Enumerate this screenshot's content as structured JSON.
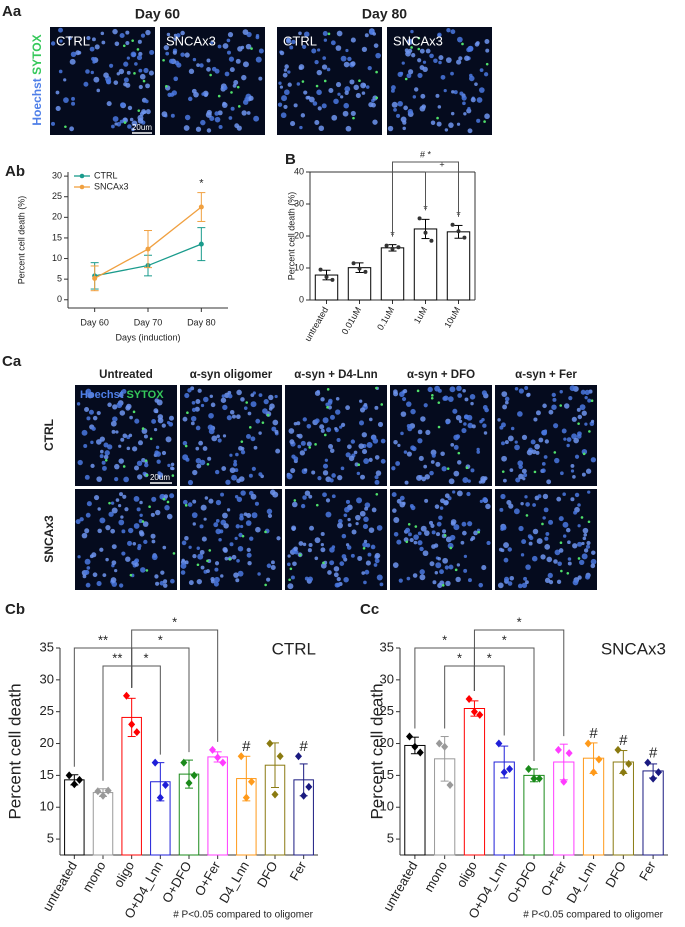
{
  "image_panels": {
    "Aa": {
      "label": "Aa",
      "headers": [
        "Day 60",
        "Day 80"
      ],
      "stain": [
        "Hoechst",
        "SYTOX"
      ],
      "tiles": [
        "CTRL",
        "SNCAx3",
        "CTRL",
        "SNCAx3"
      ],
      "scale": "20um"
    },
    "Ca": {
      "label": "Ca",
      "columns": [
        "Untreated",
        "α-syn oligomer",
        "α-syn + D4-Lnn",
        "α-syn + DFO",
        "α-syn + Fer"
      ],
      "rows": [
        "CTRL",
        "SNCAx3"
      ],
      "stain": [
        "Hoechst",
        "SYTOX"
      ],
      "scale": "20um"
    }
  },
  "chart_data": [
    {
      "type": "line",
      "panel": "Ab",
      "xlabel": "Days (induction)",
      "ylabel": "Percent cell death (%)",
      "categories": [
        "Day 60",
        "Day 70",
        "Day 80"
      ],
      "ylim": [
        -2,
        31
      ],
      "yticks": [
        0,
        5,
        10,
        15,
        20,
        25,
        30
      ],
      "legend": "upper left",
      "series": [
        {
          "name": "CTRL",
          "color": "#1a9b8c",
          "values": [
            5.8,
            8.3,
            13.5
          ],
          "errors": [
            3.2,
            2.5,
            4.0
          ]
        },
        {
          "name": "SNCAx3",
          "color": "#f0a040",
          "values": [
            5.2,
            12.3,
            22.5
          ],
          "errors": [
            3.0,
            4.5,
            3.5
          ]
        }
      ],
      "annotations": [
        {
          "at": 2,
          "text": "*"
        }
      ]
    },
    {
      "type": "bar",
      "panel": "B",
      "ylabel": "Percent cell death (%)",
      "categories": [
        "untreated",
        "0.01uM",
        "0.1uM",
        "1uM",
        "10uM"
      ],
      "values": [
        7.8,
        10.1,
        16.3,
        22.2,
        21.3
      ],
      "errors": [
        1.5,
        1.5,
        1.0,
        3.0,
        2.0
      ],
      "points": [
        [
          9.5,
          7.2,
          6.3
        ],
        [
          11.5,
          9.8,
          8.8
        ],
        [
          17.0,
          16.0,
          16.5
        ],
        [
          25.5,
          21.0,
          18.5
        ],
        [
          23.5,
          21.5,
          19.5
        ]
      ],
      "color": "#000000",
      "ylim": [
        0,
        40
      ],
      "yticks": [
        0,
        10,
        20,
        30,
        40
      ],
      "annotations": [
        {
          "at": 2,
          "text": "*"
        },
        {
          "at": 3,
          "text": "*"
        },
        {
          "at": 4,
          "text": "*"
        }
      ],
      "brackets": [
        {
          "from": 3,
          "to": 4,
          "label": "+"
        },
        {
          "from": 2,
          "to": 4,
          "label": "# *"
        }
      ]
    },
    {
      "type": "bar",
      "panel": "Cb",
      "title": "CTRL",
      "ylabel": "Percent cell death",
      "categories": [
        "untreated",
        "mono",
        "oligo",
        "O+D4_Lnn",
        "O+DFO",
        "O+Fer",
        "D4_Lnn",
        "DFO",
        "Fer"
      ],
      "values": [
        14.3,
        12.3,
        24.1,
        14.0,
        15.2,
        17.9,
        14.5,
        16.6,
        14.3
      ],
      "errors": [
        0.8,
        0.6,
        3.0,
        3.0,
        2.2,
        0.8,
        3.5,
        3.5,
        2.5
      ],
      "points": [
        [
          15,
          13.6,
          14.3
        ],
        [
          12.5,
          11.8,
          12.6
        ],
        [
          27.5,
          23,
          21.8
        ],
        [
          17,
          11.5,
          13.5
        ],
        [
          17,
          13.8,
          15
        ],
        [
          19,
          17.8,
          17
        ],
        [
          18,
          11.5,
          14
        ],
        [
          20,
          12,
          18
        ],
        [
          18,
          11.8,
          13.2
        ]
      ],
      "colors": [
        "#000000",
        "#999999",
        "#ff0000",
        "#1f1fd8",
        "#1a8a1a",
        "#ff3cff",
        "#ff9a1a",
        "#8a7a10",
        "#1a1a80"
      ],
      "ylim": [
        2.5,
        35
      ],
      "yticks": [
        5,
        10,
        15,
        20,
        25,
        30,
        35
      ],
      "annotations": [
        {
          "at": 6,
          "text": "#"
        },
        {
          "at": 8,
          "text": "#"
        }
      ],
      "brackets": [
        {
          "from": 0,
          "to": 2,
          "label": "**"
        },
        {
          "from": 1,
          "to": 2,
          "label": "**"
        },
        {
          "from": 2,
          "to": 3,
          "label": "*"
        },
        {
          "from": 2,
          "to": 4,
          "label": "*"
        },
        {
          "from": 2,
          "to": 5,
          "label": "*"
        }
      ],
      "note": "# P<0.05 compared to oligomer"
    },
    {
      "type": "bar",
      "panel": "Cc",
      "title": "SNCAx3",
      "ylabel": "Percent cell death",
      "categories": [
        "untreated",
        "mono",
        "oligo",
        "O+D4_Lnn",
        "O+DFO",
        "O+Fer",
        "D4_Lnn",
        "DFO",
        "Fer"
      ],
      "values": [
        19.7,
        17.6,
        25.5,
        17.1,
        15.0,
        17.1,
        17.7,
        17.1,
        15.7
      ],
      "errors": [
        1.3,
        3.5,
        1.2,
        2.5,
        1.0,
        2.8,
        2.4,
        1.8,
        1.1
      ],
      "points": [
        [
          21.1,
          19.5,
          18.6
        ],
        [
          20,
          19.5,
          13.5
        ],
        [
          27,
          25,
          24.5
        ],
        [
          20,
          15.5,
          16
        ],
        [
          16,
          14.5,
          14.5
        ],
        [
          19,
          14,
          18.5
        ],
        [
          20,
          15.5,
          17.5
        ],
        [
          19,
          15.5,
          16.8
        ],
        [
          17,
          14.5,
          15.5
        ]
      ],
      "colors": [
        "#000000",
        "#999999",
        "#ff0000",
        "#1f1fd8",
        "#1a8a1a",
        "#ff3cff",
        "#ff9a1a",
        "#8a7a10",
        "#1a1a80"
      ],
      "ylim": [
        2.5,
        35
      ],
      "yticks": [
        5,
        10,
        15,
        20,
        25,
        30,
        35
      ],
      "annotations": [
        {
          "at": 6,
          "text": "#"
        },
        {
          "at": 7,
          "text": "#"
        },
        {
          "at": 8,
          "text": "#"
        }
      ],
      "brackets": [
        {
          "from": 0,
          "to": 2,
          "label": "*"
        },
        {
          "from": 1,
          "to": 2,
          "label": "*"
        },
        {
          "from": 2,
          "to": 3,
          "label": "*"
        },
        {
          "from": 2,
          "to": 4,
          "label": "*"
        },
        {
          "from": 2,
          "to": 5,
          "label": "*"
        }
      ],
      "note": "# P<0.05 compared to oligomer"
    }
  ]
}
